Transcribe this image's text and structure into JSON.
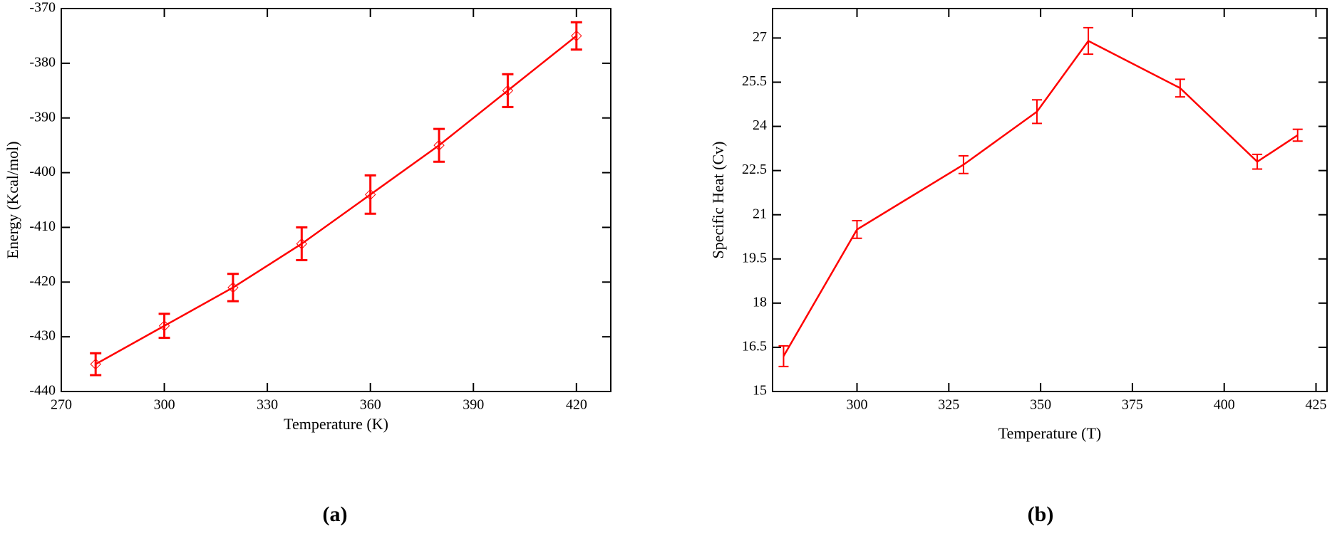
{
  "chart_data": [
    {
      "type": "line",
      "panel_label": "(a)",
      "x_label": "Temperature (K)",
      "y_label": "Energy (Kcal/mol)",
      "xlim": [
        270,
        430
      ],
      "xticks": [
        270,
        300,
        330,
        360,
        390,
        420
      ],
      "ylim": [
        -440,
        -370
      ],
      "yticks": [
        -440,
        -430,
        -420,
        -410,
        -400,
        -390,
        -380,
        -370
      ],
      "marker": "diamond",
      "series": [
        {
          "color": "#ff0000",
          "x": [
            280,
            300,
            320,
            340,
            360,
            380,
            400,
            420
          ],
          "values": [
            -435,
            -428,
            -421,
            -413,
            -404,
            -395,
            -385,
            -375
          ],
          "errors": [
            2,
            2.2,
            2.5,
            3,
            3.5,
            3,
            3,
            2.5
          ]
        }
      ]
    },
    {
      "type": "line",
      "panel_label": "(b)",
      "x_label": "Temperature (T)",
      "y_label": "Specific Heat (Cv)",
      "xlim": [
        277,
        428
      ],
      "xticks": [
        300,
        325,
        350,
        375,
        400,
        425
      ],
      "ylim": [
        15,
        28
      ],
      "yticks": [
        15,
        16.5,
        18,
        19.5,
        21,
        22.5,
        24,
        25.5,
        27
      ],
      "marker": null,
      "series": [
        {
          "color": "#ff0000",
          "x": [
            280,
            300,
            329,
            349,
            363,
            388,
            409,
            420
          ],
          "values": [
            16.2,
            20.5,
            22.7,
            24.5,
            26.9,
            25.3,
            22.8,
            23.7
          ],
          "errors": [
            0.35,
            0.3,
            0.3,
            0.4,
            0.45,
            0.3,
            0.25,
            0.2
          ]
        }
      ]
    }
  ]
}
